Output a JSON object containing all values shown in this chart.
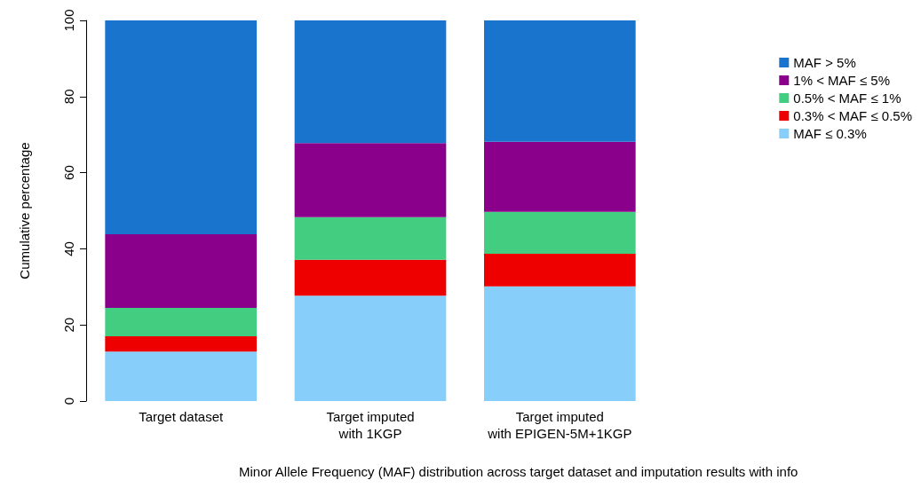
{
  "chart_data": {
    "type": "bar",
    "stacked": true,
    "xlabel": "Minor Allele Frequency (MAF) distribution across target dataset and imputation results with info",
    "ylabel": "Cumulative percentage",
    "categories": [
      "Target dataset",
      "Target imputed\nwith 1KGP",
      "Target imputed\nwith EPIGEN-5M+1KGP"
    ],
    "series": [
      {
        "name": "MAF ≤ 0.3%",
        "color": "#87cefa",
        "values": [
          13,
          27.7,
          30.1
        ]
      },
      {
        "name": "0.3% < MAF ≤ 0.5%",
        "color": "#ee0000",
        "values": [
          4,
          9.4,
          8.6
        ]
      },
      {
        "name": "0.5% < MAF ≤ 1%",
        "color": "#43cd80",
        "values": [
          7.5,
          11.2,
          11
        ]
      },
      {
        "name": "1% < MAF ≤ 5%",
        "color": "#8b008b",
        "values": [
          19.3,
          19.5,
          18.4
        ]
      },
      {
        "name": "MAF > 5%",
        "color": "#1874cd",
        "values": [
          56.2,
          32.2,
          31.9
        ]
      }
    ],
    "ylim": [
      0,
      100
    ],
    "yticks": [
      0,
      20,
      40,
      60,
      80,
      100
    ],
    "grid": false,
    "legend": "right"
  }
}
